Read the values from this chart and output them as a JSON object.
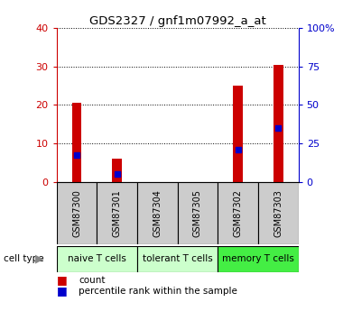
{
  "title": "GDS2327 / gnf1m07992_a_at",
  "samples": [
    "GSM87300",
    "GSM87301",
    "GSM87304",
    "GSM87305",
    "GSM87302",
    "GSM87303"
  ],
  "counts": [
    20.5,
    6.0,
    0.0,
    0.0,
    25.0,
    30.5
  ],
  "percentile_ranks": [
    17.5,
    5.0,
    0.0,
    0.0,
    21.0,
    35.0
  ],
  "cell_types": [
    {
      "label": "naive T cells",
      "start": 0,
      "end": 2,
      "color": "#ccffcc"
    },
    {
      "label": "tolerant T cells",
      "start": 2,
      "end": 4,
      "color": "#ccffcc"
    },
    {
      "label": "memory T cells",
      "start": 4,
      "end": 6,
      "color": "#44ee44"
    }
  ],
  "ylim_left": [
    0,
    40
  ],
  "ylim_right": [
    0,
    100
  ],
  "yticks_left": [
    0,
    10,
    20,
    30,
    40
  ],
  "yticks_right": [
    0,
    25,
    50,
    75,
    100
  ],
  "ytick_labels_right": [
    "0",
    "25",
    "50",
    "75",
    "100%"
  ],
  "bar_color": "#cc0000",
  "marker_color": "#0000cc",
  "bar_width": 0.7,
  "bg_color": "#ffffff",
  "plot_bg": "#ffffff",
  "label_count": "count",
  "label_percentile": "percentile rank within the sample",
  "cell_type_label": "cell type",
  "left_axis_color": "#cc0000",
  "right_axis_color": "#0000cc",
  "box_bg": "#cccccc"
}
